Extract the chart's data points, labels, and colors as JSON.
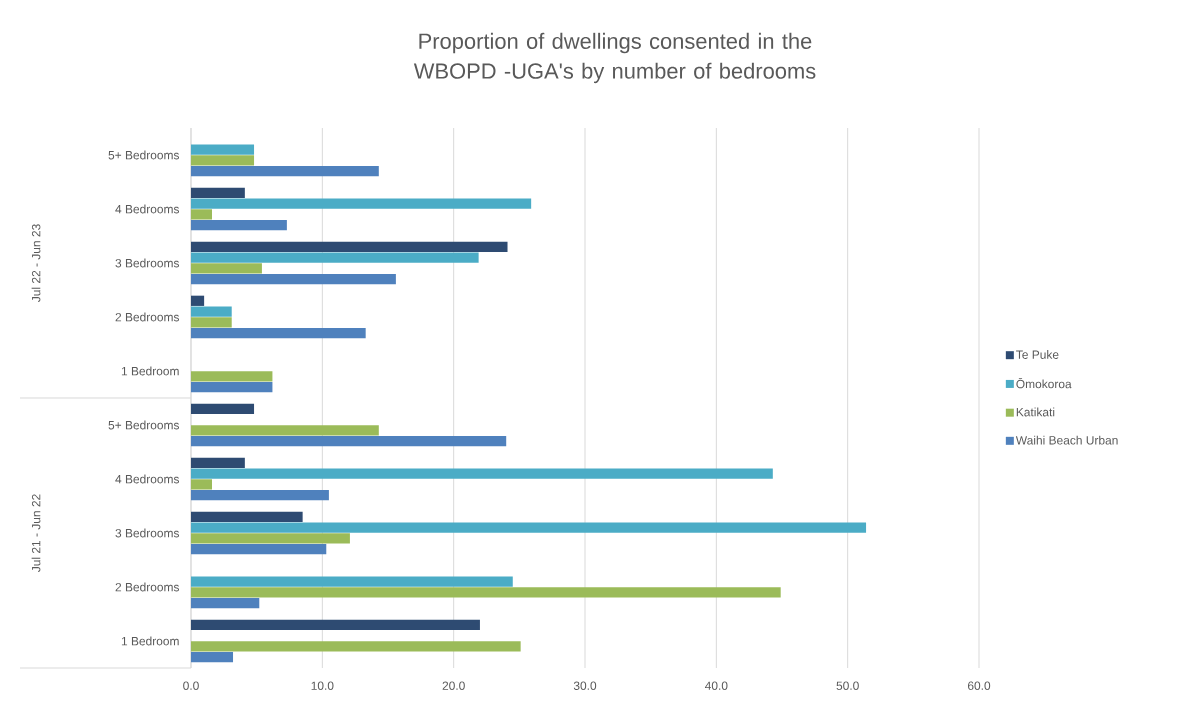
{
  "chart_data": {
    "type": "bar",
    "orientation": "horizontal",
    "title": "Proportion of dwellings consented in the WBOPD  -UGA's by number of bedrooms",
    "categories": [
      "5+ Bedrooms",
      "4 Bedrooms",
      "3 Bedrooms",
      "2 Bedrooms",
      "1 Bedroom",
      "5+ Bedrooms",
      "4 Bedrooms",
      "3 Bedrooms",
      "2 Bedrooms",
      "1 Bedroom"
    ],
    "annotations": [
      "Jul 22 - Jun 23",
      "Jul 21 - Jun 22"
    ],
    "series": [
      {
        "name": "Te Puke",
        "color": "#2e4b72",
        "values": [
          null,
          4.1,
          24.1,
          1.0,
          null,
          4.8,
          4.1,
          8.5,
          null,
          22.0
        ]
      },
      {
        "name": "Ōmokoroa",
        "color": "#4bacc6",
        "values": [
          4.8,
          25.9,
          21.9,
          3.1,
          null,
          null,
          44.3,
          51.4,
          24.5,
          null
        ]
      },
      {
        "name": "Katikati",
        "color": "#9bbb59",
        "values": [
          4.8,
          1.6,
          5.4,
          3.1,
          6.2,
          14.3,
          1.6,
          12.1,
          44.9,
          25.1
        ]
      },
      {
        "name": "Waihi Beach Urban",
        "color": "#4f81bd",
        "values": [
          14.3,
          7.3,
          15.6,
          13.3,
          6.2,
          24.0,
          10.5,
          10.3,
          5.2,
          3.2
        ]
      }
    ],
    "xlim": [
      0,
      60
    ],
    "xticks": [
      {
        "value": 0,
        "label": "0.0"
      },
      {
        "value": 10,
        "label": "10.0"
      },
      {
        "value": 20,
        "label": "20.0"
      },
      {
        "value": 30,
        "label": "30.0"
      },
      {
        "value": 40,
        "label": "40.0"
      },
      {
        "value": 50,
        "label": "50.0"
      },
      {
        "value": 60,
        "label": "60.0"
      }
    ],
    "grid": "x",
    "legend": "right"
  }
}
